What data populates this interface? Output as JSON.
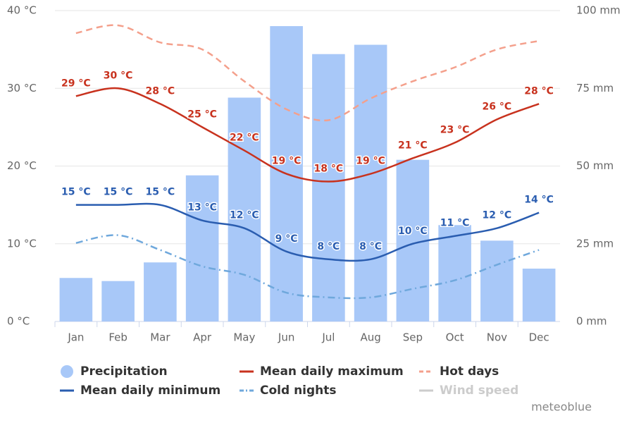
{
  "chart_data": {
    "type": "combo",
    "categories": [
      "Jan",
      "Feb",
      "Mar",
      "Apr",
      "May",
      "Jun",
      "Jul",
      "Aug",
      "Sep",
      "Oct",
      "Nov",
      "Dec"
    ],
    "ylim": [
      0,
      40
    ],
    "yticks": [
      {
        "value": 0,
        "label": "0 °C"
      },
      {
        "value": 10,
        "label": "10 °C"
      },
      {
        "value": 20,
        "label": "20 °C"
      },
      {
        "value": 30,
        "label": "30 °C"
      },
      {
        "value": 40,
        "label": "40 °C"
      }
    ],
    "y2lim": [
      0,
      100
    ],
    "y2ticks": [
      {
        "value": 0,
        "label": "0 mm"
      },
      {
        "value": 25,
        "label": "25 mm"
      },
      {
        "value": 50,
        "label": "50 mm"
      },
      {
        "value": 75,
        "label": "75 mm"
      },
      {
        "value": 100,
        "label": "100 mm"
      }
    ],
    "grid": true,
    "series": [
      {
        "name": "Precipitation",
        "type": "bar",
        "axis": "y2",
        "color": "#a8c8f8",
        "values": [
          14,
          13,
          19,
          47,
          72,
          95,
          86,
          89,
          52,
          31,
          26,
          17
        ]
      },
      {
        "name": "Mean daily maximum",
        "type": "line",
        "dash": "solid",
        "color": "#c8321e",
        "values": [
          29,
          30,
          28,
          25,
          22,
          19,
          18,
          19,
          21,
          23,
          26,
          28
        ],
        "value_labels": [
          "29 °C",
          "30 °C",
          "28 °C",
          "25 °C",
          "22 °C",
          "19 °C",
          "18 °C",
          "19 °C",
          "21 °C",
          "23 °C",
          "26 °C",
          "28 °C"
        ]
      },
      {
        "name": "Hot days",
        "type": "line",
        "dash": "dashed",
        "color": "#f4a08c",
        "values": [
          37.1,
          38.1,
          35.9,
          35,
          30.9,
          27.3,
          25.9,
          28.7,
          30.9,
          32.7,
          35,
          36.1
        ]
      },
      {
        "name": "Mean daily minimum",
        "type": "line",
        "dash": "solid",
        "color": "#2a5db0",
        "values": [
          15,
          15,
          15,
          13,
          12,
          9,
          8,
          8,
          10,
          11,
          12,
          14
        ],
        "value_labels": [
          "15 °C",
          "15 °C",
          "15 °C",
          "13 °C",
          "12 °C",
          "9 °C",
          "8 °C",
          "8 °C",
          "10 °C",
          "11 °C",
          "12 °C",
          "14 °C"
        ]
      },
      {
        "name": "Cold nights",
        "type": "line",
        "dash": "dashdot",
        "color": "#6fa8dc",
        "values": [
          10.1,
          11.1,
          9.2,
          7.1,
          6,
          3.7,
          3.1,
          3.1,
          4.2,
          5.3,
          7.3,
          9.2
        ]
      },
      {
        "name": "Wind speed",
        "type": "line",
        "dash": "solid",
        "color": "#cccccc",
        "visible": false,
        "values": [
          null,
          null,
          null,
          null,
          null,
          null,
          null,
          null,
          null,
          null,
          null,
          null
        ]
      }
    ],
    "credit": "meteoblue"
  }
}
